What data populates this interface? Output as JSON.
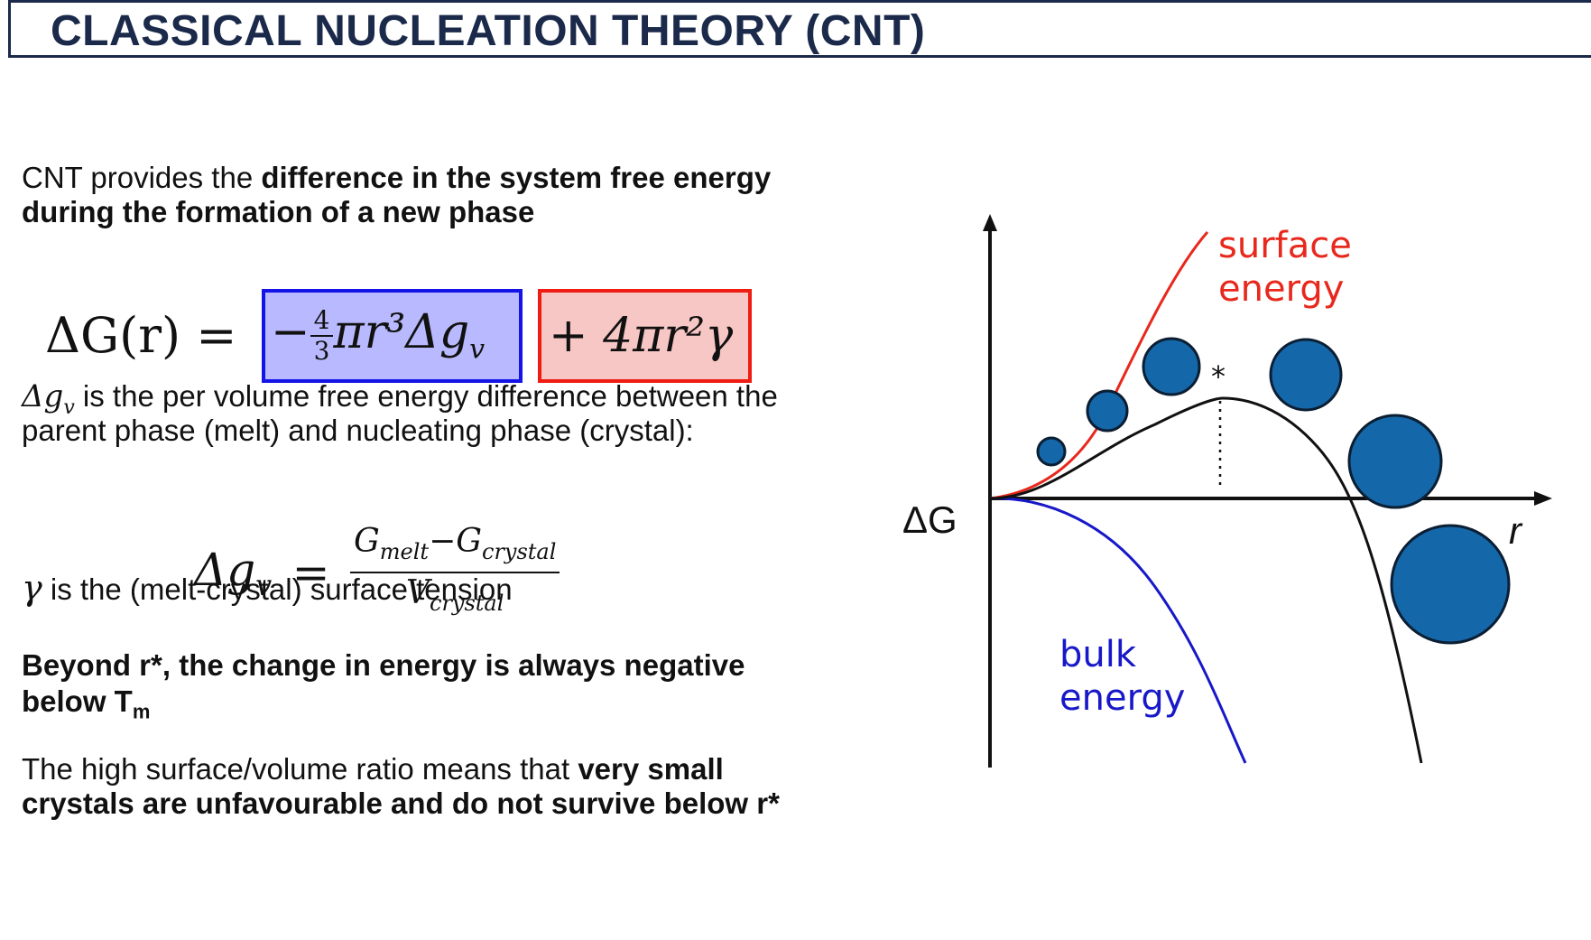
{
  "title": "CLASSICAL NUCLEATION THEORY (CNT)",
  "intro": {
    "normal": "CNT provides the ",
    "bold_line1": "difference in the system free energy",
    "bold_line2": "during the formation of a new phase"
  },
  "equation_main": {
    "lhs": "ΔG(r) =",
    "volume_term": "−",
    "volume_frac_num": "4",
    "volume_frac_den": "3",
    "volume_rest": "πr³Δg",
    "volume_sub": "v",
    "surface_term": "+ 4πr²γ"
  },
  "dg_def": {
    "symbol": "Δg",
    "sub": "v",
    "line1": " is the per volume free energy difference between the",
    "line2": "parent phase (melt) and nucleating phase (crystal):"
  },
  "equation_dgv": {
    "lhs": "Δg",
    "lhs_sub": "v",
    "equals": "=",
    "num_a": "G",
    "num_a_sub": "melt",
    "minus": "−",
    "num_b": "G",
    "num_b_sub": "crystal",
    "den": "V",
    "den_sub": "crystal"
  },
  "gamma_def": {
    "symbol": "γ",
    "text": " is the (melt-crystal) surface tension"
  },
  "beyond": {
    "line1": "Beyond r*, the change in energy is always negative",
    "line2_text": "below T",
    "line2_sub": "m"
  },
  "surface_ratio": {
    "normal": "The high surface/volume ratio means that ",
    "bold_line1": "very small",
    "bold_line2": "crystals are unfavourable and do not survive below r*"
  },
  "graph": {
    "y_label": "ΔG",
    "x_label": "r",
    "critical_marker": "*",
    "surface_label_line1": "surface",
    "surface_label_line2": "energy",
    "bulk_label_line1": "bulk",
    "bulk_label_line2": "energy",
    "colors": {
      "surface": "#e8281c",
      "bulk": "#1818c8",
      "total": "#111111",
      "nucleus_fill": "#1467a8",
      "nucleus_stroke": "#0b1e33"
    }
  }
}
